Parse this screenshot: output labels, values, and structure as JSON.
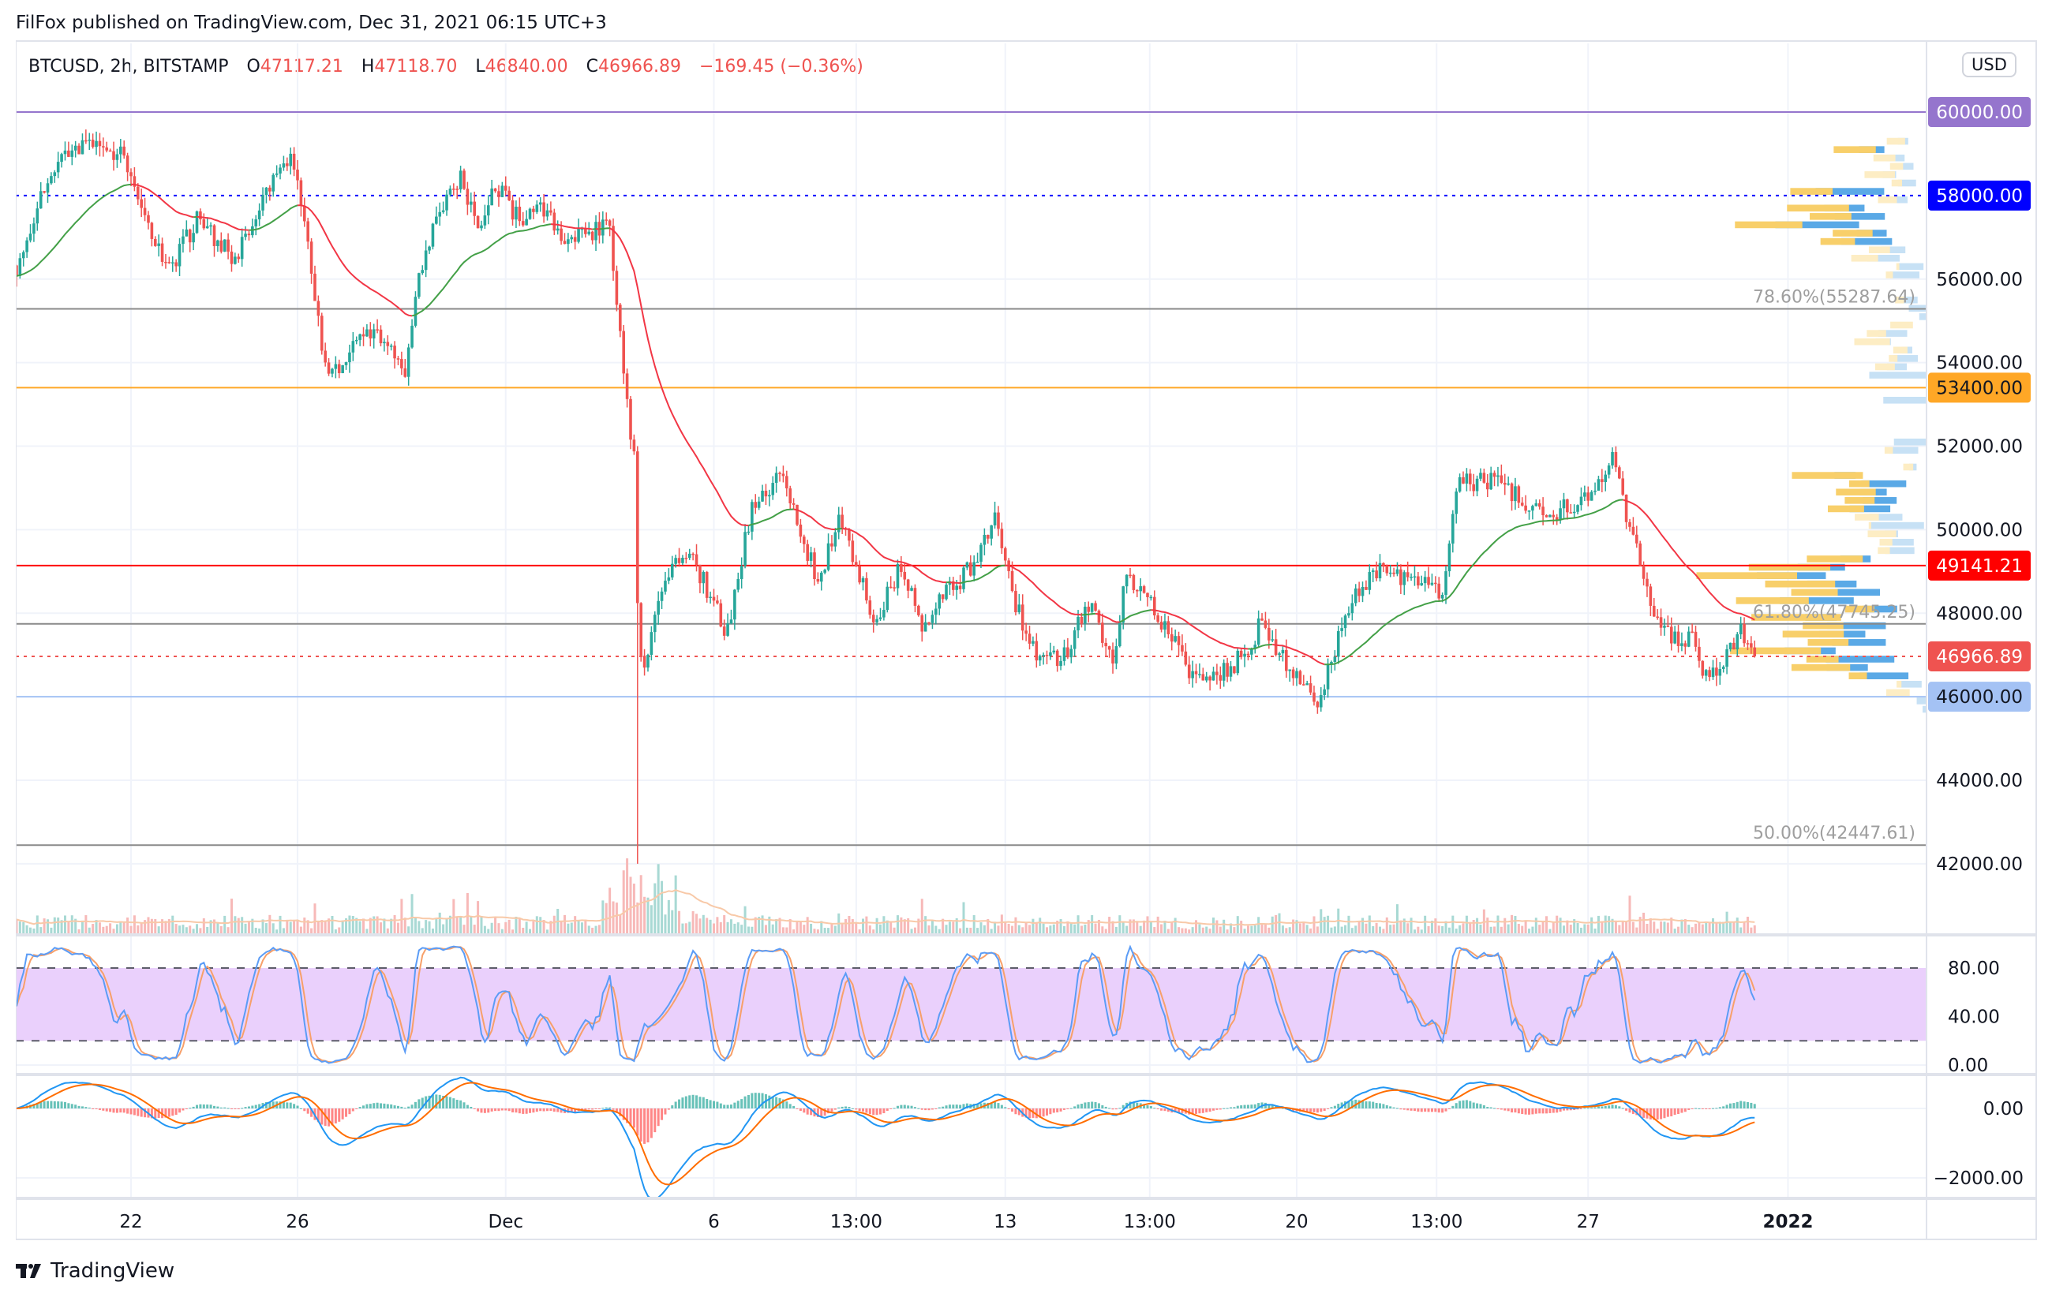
{
  "header": {
    "publisher_line": "FilFox published on TradingView.com, Dec 31, 2021 06:15 UTC+3"
  },
  "legend": {
    "symbol": "BTCUSD, 2h, BITSTAMP",
    "o_label": "O",
    "o": "47117.21",
    "h_label": "H",
    "h": "47118.70",
    "l_label": "L",
    "l": "46840.00",
    "c_label": "C",
    "c": "46966.89",
    "change": "−169.45 (−0.36%)"
  },
  "price_axis": {
    "currency": "USD",
    "ticks": [
      {
        "value": 56000,
        "label": "56000.00"
      },
      {
        "value": 54000,
        "label": "54000.00"
      },
      {
        "value": 52000,
        "label": "52000.00"
      },
      {
        "value": 50000,
        "label": "50000.00"
      },
      {
        "value": 48000,
        "label": "48000.00"
      },
      {
        "value": 44000,
        "label": "44000.00"
      },
      {
        "value": 42000,
        "label": "42000.00"
      }
    ]
  },
  "price_levels": [
    {
      "value": 60000,
      "label": "60000.00",
      "color": "#9575cd",
      "text_color": "#ffffff",
      "dash": false
    },
    {
      "value": 58000,
      "label": "58000.00",
      "color": "#0000ff",
      "text_color": "#ffffff",
      "dash": true
    },
    {
      "value": 53400,
      "label": "53400.00",
      "color": "#ffa726",
      "text_color": "#131722",
      "dash": false
    },
    {
      "value": 49141.21,
      "label": "49141.21",
      "color": "#ff0000",
      "text_color": "#ffffff",
      "dash": false
    },
    {
      "value": 46966.89,
      "label": "46966.89",
      "color": "#ef5350",
      "text_color": "#ffffff",
      "dash": true
    },
    {
      "value": 46000,
      "label": "46000.00",
      "color": "#a4c2f4",
      "text_color": "#131722",
      "dash": false
    }
  ],
  "fib_levels": [
    {
      "value": 55287.64,
      "label": "78.60%(55287.64)"
    },
    {
      "value": 47745.25,
      "label": "61.80%(47745.25)"
    },
    {
      "value": 42447.61,
      "label": "50.00%(42447.61)"
    }
  ],
  "stoch_axis": [
    {
      "value": 80,
      "label": "80.00"
    },
    {
      "value": 40,
      "label": "40.00"
    },
    {
      "value": 0,
      "label": "0.00"
    }
  ],
  "macd_axis": [
    {
      "value": 0,
      "label": "0.00"
    },
    {
      "value": -2000,
      "label": "−2000.00"
    }
  ],
  "time_axis": [
    {
      "label": "22",
      "day": 0
    },
    {
      "label": "26",
      "day": 4
    },
    {
      "label": "Dec",
      "day": 9
    },
    {
      "label": "6",
      "day": 14
    },
    {
      "label": "13:00",
      "day": 17.42
    },
    {
      "label": "13",
      "day": 21
    },
    {
      "label": "13:00",
      "day": 24.47
    },
    {
      "label": "20",
      "day": 28
    },
    {
      "label": "13:00",
      "day": 31.36
    },
    {
      "label": "27",
      "day": 35
    },
    {
      "label": "2022",
      "day": 39.8
    }
  ],
  "footer": {
    "brand": "TradingView"
  },
  "colors": {
    "up": "#26a69a",
    "down": "#ef5350",
    "stoch_band": "#ead0fc",
    "k": "#5b9cf6",
    "d": "#f7a06a",
    "macd": "#2196f3",
    "signal": "#ff6d00"
  },
  "chart_data": {
    "type": "candlestick",
    "title": "BTCUSD, 2h, BITSTAMP",
    "interval_hours": 2,
    "x_unit": "days since Nov 22, 2021",
    "ylim": [
      41000,
      61000
    ],
    "keypoints": [
      [
        -2.76,
        56300
      ],
      [
        -1.9,
        58600
      ],
      [
        -1.1,
        59200
      ],
      [
        -0.15,
        59000
      ],
      [
        0.3,
        57500
      ],
      [
        0.9,
        56200
      ],
      [
        1.6,
        57400
      ],
      [
        2.5,
        56500
      ],
      [
        3.8,
        59000
      ],
      [
        4.2,
        57500
      ],
      [
        4.6,
        54000
      ],
      [
        5.0,
        53900
      ],
      [
        5.7,
        54800
      ],
      [
        6.6,
        53800
      ],
      [
        6.9,
        56000
      ],
      [
        7.4,
        57600
      ],
      [
        7.9,
        58500
      ],
      [
        8.3,
        57200
      ],
      [
        8.8,
        58200
      ],
      [
        9.3,
        57400
      ],
      [
        9.75,
        57800
      ],
      [
        10.4,
        57000
      ],
      [
        11.5,
        57200
      ],
      [
        11.8,
        54000
      ],
      [
        12.1,
        51500
      ],
      [
        12.2,
        47000
      ],
      [
        12.4,
        46800
      ],
      [
        12.8,
        49000
      ],
      [
        13.5,
        49300
      ],
      [
        14.3,
        47500
      ],
      [
        14.9,
        50500
      ],
      [
        15.6,
        51300
      ],
      [
        16.0,
        50300
      ],
      [
        16.5,
        48700
      ],
      [
        17.0,
        50400
      ],
      [
        17.6,
        48600
      ],
      [
        17.9,
        47800
      ],
      [
        18.5,
        49200
      ],
      [
        19.0,
        47500
      ],
      [
        19.5,
        48400
      ],
      [
        20.1,
        49000
      ],
      [
        20.75,
        50300
      ],
      [
        21.2,
        48400
      ],
      [
        21.7,
        47000
      ],
      [
        22.3,
        46800
      ],
      [
        23.0,
        48200
      ],
      [
        23.6,
        47000
      ],
      [
        23.9,
        49000
      ],
      [
        24.5,
        48300
      ],
      [
        25.3,
        46800
      ],
      [
        25.9,
        46300
      ],
      [
        26.6,
        46900
      ],
      [
        27.2,
        47800
      ],
      [
        27.8,
        46600
      ],
      [
        28.5,
        45900
      ],
      [
        28.9,
        47000
      ],
      [
        29.3,
        48400
      ],
      [
        30.0,
        49000
      ],
      [
        30.8,
        48700
      ],
      [
        31.5,
        48500
      ],
      [
        31.8,
        51000
      ],
      [
        32.4,
        51200
      ],
      [
        33.3,
        50900
      ],
      [
        34.0,
        50200
      ],
      [
        34.6,
        50600
      ],
      [
        35.1,
        50900
      ],
      [
        35.6,
        51800
      ],
      [
        35.9,
        50500
      ],
      [
        36.4,
        48600
      ],
      [
        36.8,
        47600
      ],
      [
        37.5,
        47300
      ],
      [
        37.9,
        46400
      ],
      [
        38.4,
        47200
      ],
      [
        38.7,
        47600
      ],
      [
        39.0,
        46967
      ]
    ],
    "crash_low": [
      12.2,
      42000
    ],
    "last_close": 46966.89
  }
}
